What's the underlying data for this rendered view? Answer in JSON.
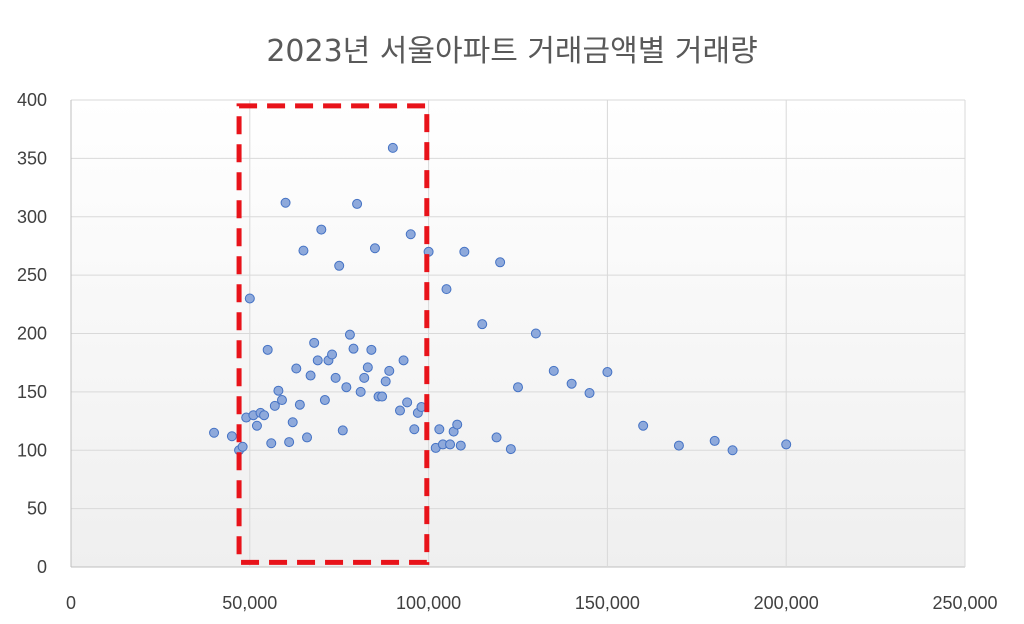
{
  "chart_data": {
    "type": "scatter",
    "title": "2023년 서울아파트 거래금액별 거래량",
    "xlabel": "",
    "ylabel": "",
    "xlim": [
      0,
      250000
    ],
    "ylim": [
      0,
      400
    ],
    "x_ticks": [
      0,
      50000,
      100000,
      150000,
      200000,
      250000
    ],
    "x_tick_labels": [
      "0",
      "50,000",
      "100,000",
      "150,000",
      "200,000",
      "250,000"
    ],
    "y_ticks": [
      0,
      50,
      100,
      150,
      200,
      250,
      300,
      350,
      400
    ],
    "y_tick_labels": [
      "0",
      "50",
      "100",
      "150",
      "200",
      "250",
      "300",
      "350",
      "400"
    ],
    "grid": true,
    "legend": "none",
    "marker_color": "#8EA9DB",
    "marker_edge_color": "#4472C4",
    "highlight_box": {
      "x_range": [
        47000,
        99500
      ],
      "y_range": [
        4,
        395
      ],
      "color": "#E8131A",
      "style": "dashed"
    },
    "points": [
      [
        40000,
        115
      ],
      [
        45000,
        112
      ],
      [
        47000,
        100
      ],
      [
        48000,
        103
      ],
      [
        49000,
        128
      ],
      [
        50000,
        230
      ],
      [
        51000,
        130
      ],
      [
        52000,
        121
      ],
      [
        53000,
        132
      ],
      [
        54000,
        130
      ],
      [
        55000,
        186
      ],
      [
        56000,
        106
      ],
      [
        57000,
        138
      ],
      [
        58000,
        151
      ],
      [
        59000,
        143
      ],
      [
        60000,
        312
      ],
      [
        61000,
        107
      ],
      [
        62000,
        124
      ],
      [
        63000,
        170
      ],
      [
        64000,
        139
      ],
      [
        65000,
        271
      ],
      [
        66000,
        111
      ],
      [
        67000,
        164
      ],
      [
        68000,
        192
      ],
      [
        69000,
        177
      ],
      [
        70000,
        289
      ],
      [
        71000,
        143
      ],
      [
        72000,
        177
      ],
      [
        73000,
        182
      ],
      [
        74000,
        162
      ],
      [
        75000,
        258
      ],
      [
        76000,
        117
      ],
      [
        77000,
        154
      ],
      [
        78000,
        199
      ],
      [
        79000,
        187
      ],
      [
        80000,
        311
      ],
      [
        81000,
        150
      ],
      [
        82000,
        162
      ],
      [
        83000,
        171
      ],
      [
        84000,
        186
      ],
      [
        85000,
        273
      ],
      [
        86000,
        146
      ],
      [
        87000,
        146
      ],
      [
        88000,
        159
      ],
      [
        89000,
        168
      ],
      [
        90000,
        359
      ],
      [
        92000,
        134
      ],
      [
        93000,
        177
      ],
      [
        94000,
        141
      ],
      [
        95000,
        285
      ],
      [
        96000,
        118
      ],
      [
        97000,
        132
      ],
      [
        98000,
        137
      ],
      [
        100000,
        270
      ],
      [
        102000,
        102
      ],
      [
        103000,
        118
      ],
      [
        104000,
        105
      ],
      [
        105000,
        238
      ],
      [
        106000,
        105
      ],
      [
        107000,
        116
      ],
      [
        108000,
        122
      ],
      [
        109000,
        104
      ],
      [
        110000,
        270
      ],
      [
        115000,
        208
      ],
      [
        119000,
        111
      ],
      [
        120000,
        261
      ],
      [
        123000,
        101
      ],
      [
        125000,
        154
      ],
      [
        130000,
        200
      ],
      [
        135000,
        168
      ],
      [
        140000,
        157
      ],
      [
        145000,
        149
      ],
      [
        150000,
        167
      ],
      [
        160000,
        121
      ],
      [
        170000,
        104
      ],
      [
        180000,
        108
      ],
      [
        185000,
        100
      ],
      [
        200000,
        105
      ]
    ]
  }
}
